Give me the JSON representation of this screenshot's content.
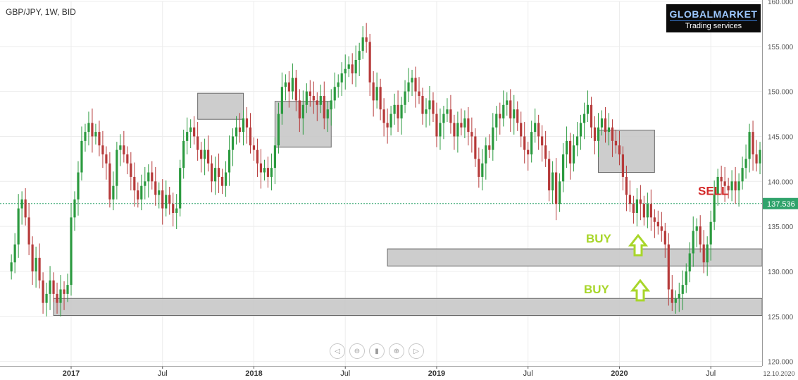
{
  "chart_data": {
    "type": "candlestick",
    "symbol_label": "GBP/JPY, 1W, BID",
    "brand": {
      "name": "GLOBALMARKET",
      "tagline": "Trading services"
    },
    "ylim": [
      119.5,
      160
    ],
    "y_ticks": [
      "160.000",
      "155.000",
      "150.000",
      "145.000",
      "140.000",
      "135.000",
      "130.000",
      "125.000",
      "120.000"
    ],
    "y_tick_values": [
      160,
      155,
      150,
      145,
      140,
      135,
      130,
      125,
      120
    ],
    "x_ticks": [
      "2017",
      "Jul",
      "2018",
      "Jul",
      "2019",
      "Jul",
      "2020",
      "Jul"
    ],
    "x_tick_bold": [
      true,
      false,
      true,
      false,
      true,
      false,
      true,
      false
    ],
    "x_tick_index": [
      0,
      26,
      52,
      78,
      104,
      130,
      156,
      182
    ],
    "x_end_label": "12.10.2020",
    "price_start_index": -17,
    "last_price": 137.536,
    "last_price_label": "137.536",
    "colors": {
      "up": "#2b9a3f",
      "down": "#b63a3a",
      "zone": "#c8c8c8",
      "arrow_buy": "#a8d62a",
      "arrow_sell": "#d42a2a",
      "last_price": "#2fa36b"
    },
    "closes": [
      131.0,
      133.0,
      137.0,
      138.0,
      136.0,
      133.0,
      130.0,
      131.5,
      129.0,
      126.5,
      127.5,
      129.0,
      127.5,
      126.5,
      128.0,
      127.5,
      128.5,
      136.0,
      138.0,
      141.0,
      144.5,
      145.5,
      146.5,
      145.0,
      145.5,
      144.0,
      143.0,
      142.0,
      138.0,
      139.5,
      143.5,
      144.0,
      143.0,
      142.0,
      140.5,
      139.0,
      138.0,
      139.5,
      140.0,
      141.0,
      140.0,
      138.5,
      139.0,
      137.0,
      138.5,
      137.5,
      136.5,
      137.0,
      141.5,
      144.5,
      145.5,
      146.0,
      145.0,
      143.5,
      142.5,
      143.5,
      142.0,
      140.0,
      141.5,
      140.5,
      139.5,
      141.0,
      143.5,
      145.0,
      146.0,
      145.5,
      147.0,
      146.0,
      144.0,
      143.5,
      142.0,
      141.0,
      141.5,
      140.5,
      141.5,
      144.0,
      147.5,
      150.5,
      151.0,
      150.0,
      151.5,
      149.0,
      147.0,
      148.5,
      150.0,
      149.5,
      149.0,
      148.5,
      149.5,
      147.0,
      148.0,
      149.0,
      150.5,
      151.0,
      152.0,
      152.5,
      153.0,
      152.0,
      153.5,
      154.5,
      156.0,
      155.5,
      151.0,
      149.0,
      150.5,
      148.0,
      146.5,
      146.0,
      147.5,
      148.5,
      147.0,
      148.5,
      150.0,
      151.0,
      151.5,
      150.0,
      149.5,
      147.5,
      148.0,
      149.0,
      147.5,
      145.0,
      146.5,
      147.5,
      148.0,
      146.5,
      145.0,
      146.5,
      146.0,
      147.0,
      145.5,
      145.0,
      142.5,
      140.5,
      142.0,
      144.0,
      143.5,
      146.0,
      147.5,
      147.0,
      148.5,
      149.0,
      147.0,
      148.0,
      146.5,
      145.0,
      143.5,
      143.0,
      145.5,
      146.5,
      145.0,
      144.0,
      142.5,
      139.0,
      141.0,
      137.5,
      140.0,
      143.0,
      144.5,
      142.0,
      144.0,
      145.0,
      146.5,
      147.5,
      148.5,
      146.0,
      144.5,
      146.0,
      147.0,
      145.5,
      146.0,
      144.5,
      144.0,
      143.0,
      140.5,
      138.5,
      137.5,
      136.5,
      138.0,
      137.5,
      136.0,
      137.5,
      136.0,
      135.5,
      135.0,
      134.5,
      133.0,
      128.0,
      126.5,
      127.0,
      127.5,
      128.5,
      130.0,
      132.0,
      134.5,
      135.0,
      133.0,
      131.0,
      133.0,
      135.5,
      138.5,
      140.5,
      140.0,
      139.5,
      139.0,
      140.0,
      139.0,
      140.0,
      141.5,
      142.5,
      145.5,
      143.0,
      142.0,
      143.5,
      142.5,
      141.5,
      143.0,
      141.0,
      142.0,
      143.5,
      141.0,
      142.5,
      139.5,
      137.536
    ],
    "zones": [
      {
        "from_index": -5,
        "to_index": 269,
        "low": 125.1,
        "high": 127.0
      },
      {
        "from_index": 90,
        "to_index": 269,
        "low": 130.6,
        "high": 132.5
      },
      {
        "from_index": 36,
        "to_index": 49,
        "low": 146.9,
        "high": 149.8
      },
      {
        "from_index": 58,
        "to_index": 74,
        "low": 143.8,
        "high": 148.9
      },
      {
        "from_index": 150,
        "to_index": 166,
        "low": 141.0,
        "high": 145.7
      }
    ],
    "annotations": [
      {
        "text": "SELL",
        "type": "arrow-down",
        "color": "#d42a2a"
      },
      {
        "text": "BUY",
        "type": "arrow-up",
        "color": "#a8d62a"
      },
      {
        "text": "BUY",
        "type": "arrow-up",
        "color": "#a8d62a"
      }
    ]
  },
  "toolbar": [
    {
      "name": "scroll-left-button",
      "glyph": "◁"
    },
    {
      "name": "zoom-out-button",
      "glyph": "⊖"
    },
    {
      "name": "reset-button",
      "glyph": "▮"
    },
    {
      "name": "zoom-in-button",
      "glyph": "⊕"
    },
    {
      "name": "scroll-right-button",
      "glyph": "▷"
    }
  ]
}
